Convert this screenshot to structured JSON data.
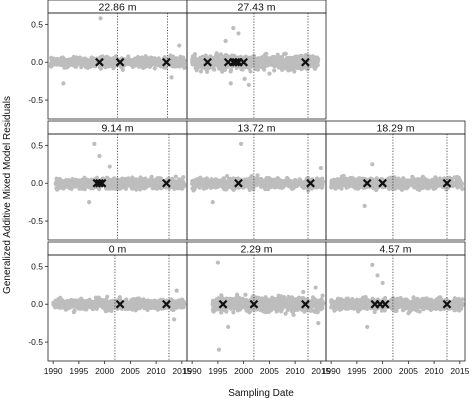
{
  "chart_data": {
    "type": "scatter",
    "xlabel": "Sampling Date",
    "ylabel": "Generalized Additive Mixed Model Residuals",
    "x_ticks": [
      1990,
      1995,
      2000,
      2005,
      2010,
      2015
    ],
    "y_ticks": [
      -0.5,
      0.0,
      0.5
    ],
    "y_tick_labels": [
      "-0.5",
      "0.0",
      "0.5"
    ],
    "xlim": [
      1989,
      2016
    ],
    "ylim": [
      -0.75,
      0.65
    ],
    "point_color": "#bdbdbd",
    "marker_color": "#111111",
    "panels": [
      {
        "title": "22.86 m",
        "row": 0,
        "col": 0,
        "start": 1989.5,
        "end": 2015.5,
        "spread": 0.07,
        "vlines": [
          2002.5,
          2012.2
        ],
        "crosses": [
          1999.0,
          2003.0,
          2012.0
        ],
        "outliers": [
          [
            1999.2,
            0.58
          ],
          [
            1992.0,
            -0.28
          ],
          [
            2014.5,
            0.22
          ],
          [
            2013.0,
            -0.2
          ]
        ]
      },
      {
        "title": "27.43 m",
        "row": 0,
        "col": 1,
        "start": 1990.0,
        "end": 2014.5,
        "spread": 0.1,
        "vlines": [
          2002.0,
          2012.5
        ],
        "crosses": [
          1993.0,
          1997.0,
          1998.0,
          1998.5,
          1999.0,
          2000.0,
          2012.0
        ],
        "outliers": [
          [
            1998.0,
            0.45
          ],
          [
            1999.0,
            0.38
          ],
          [
            1997.5,
            -0.28
          ],
          [
            2001.0,
            -0.3
          ],
          [
            1996.5,
            0.28
          ],
          [
            2000.2,
            -0.22
          ]
        ]
      },
      {
        "title": "9.14 m",
        "row": 1,
        "col": 0,
        "start": 1990.5,
        "end": 2015.5,
        "spread": 0.07,
        "vlines": [
          2002.5,
          2012.5
        ],
        "crosses": [
          1998.5,
          1999.0,
          1999.5,
          2012.0
        ],
        "outliers": [
          [
            1998.0,
            0.52
          ],
          [
            1999.0,
            0.36
          ],
          [
            1997.0,
            -0.25
          ],
          [
            2001.0,
            0.22
          ]
        ]
      },
      {
        "title": "13.72 m",
        "row": 1,
        "col": 1,
        "start": 1990.0,
        "end": 2015.5,
        "spread": 0.07,
        "vlines": [
          2002.0,
          2012.5
        ],
        "crosses": [
          1999.0,
          2013.0
        ],
        "outliers": [
          [
            1999.5,
            0.52
          ],
          [
            1994.0,
            -0.25
          ],
          [
            2015.0,
            0.2
          ]
        ]
      },
      {
        "title": "18.29 m",
        "row": 1,
        "col": 2,
        "start": 1990.0,
        "end": 2015.5,
        "spread": 0.07,
        "vlines": [
          2002.0,
          2012.5
        ],
        "crosses": [
          1997.0,
          2000.0,
          2012.5
        ],
        "outliers": [
          [
            1998.0,
            0.25
          ],
          [
            1996.5,
            -0.3
          ]
        ]
      },
      {
        "title": "0 m",
        "row": 2,
        "col": 0,
        "start": 1990.0,
        "end": 2015.5,
        "spread": 0.07,
        "vlines": [
          2002.0,
          2012.5
        ],
        "crosses": [
          2003.0,
          2012.0
        ],
        "outliers": [
          [
            2014.0,
            0.18
          ],
          [
            2013.5,
            -0.2
          ]
        ]
      },
      {
        "title": "2.29 m",
        "row": 2,
        "col": 1,
        "start": 1994.0,
        "end": 2015.5,
        "spread": 0.1,
        "vlines": [
          2002.0,
          2012.5
        ],
        "crosses": [
          1996.0,
          2002.0,
          2012.0
        ],
        "outliers": [
          [
            1995.0,
            0.55
          ],
          [
            1995.2,
            -0.6
          ],
          [
            1997.0,
            -0.3
          ],
          [
            2014.0,
            0.22
          ],
          [
            2014.5,
            -0.25
          ]
        ]
      },
      {
        "title": "4.57 m",
        "row": 2,
        "col": 2,
        "start": 1990.0,
        "end": 2015.5,
        "spread": 0.08,
        "vlines": [
          2002.0,
          2012.5
        ],
        "crosses": [
          1998.5,
          1999.5,
          2000.5,
          2012.5
        ],
        "outliers": [
          [
            1998.0,
            0.52
          ],
          [
            1999.0,
            0.38
          ],
          [
            2000.0,
            0.28
          ],
          [
            1997.0,
            -0.3
          ]
        ]
      }
    ]
  }
}
